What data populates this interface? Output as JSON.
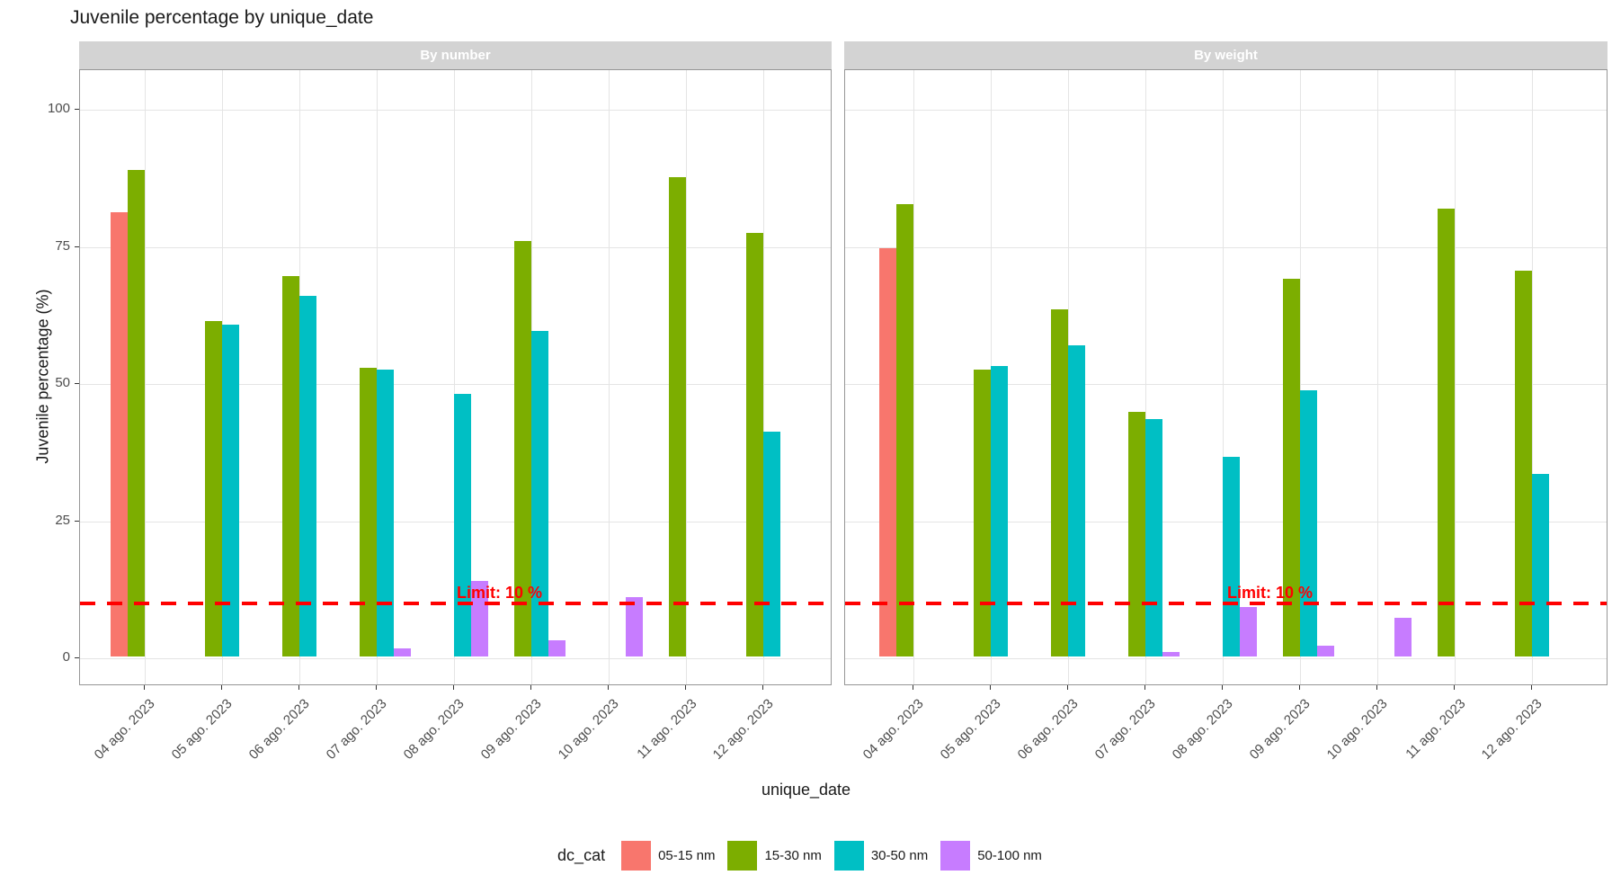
{
  "title": "Juvenile percentage by unique_date",
  "chart_data": {
    "type": "bar",
    "title": "Juvenile percentage by unique_date",
    "xlabel": "unique_date",
    "ylabel": "Juvenile percentage (%)",
    "ylim": [
      0,
      100
    ],
    "y_ticks": [
      0,
      25,
      50,
      75,
      100
    ],
    "grid": "major",
    "legend_position": "bottom",
    "legend_title": "dc_cat",
    "categories": [
      "04 ago. 2023",
      "05 ago. 2023",
      "06 ago. 2023",
      "07 ago. 2023",
      "08 ago. 2023",
      "09 ago. 2023",
      "10 ago. 2023",
      "11 ago. 2023",
      "12 ago. 2023"
    ],
    "series_colors": {
      "05-15 nm": "#F8766D",
      "15-30 nm": "#7CAE00",
      "30-50 nm": "#00BFC4",
      "50-100 nm": "#C77CFF"
    },
    "hline": {
      "value": 10,
      "label": "Limit: 10 %",
      "color": "#FF0000",
      "style": "dashed"
    },
    "facets": [
      {
        "name": "By number",
        "series": [
          {
            "name": "05-15 nm",
            "color": "#F8766D",
            "values": [
              81,
              null,
              null,
              null,
              null,
              null,
              null,
              null,
              null
            ]
          },
          {
            "name": "15-30 nm",
            "color": "#7CAE00",
            "values": [
              88.7,
              61.2,
              69.3,
              52.6,
              null,
              75.7,
              null,
              87.4,
              77.2
            ]
          },
          {
            "name": "30-50 nm",
            "color": "#00BFC4",
            "values": [
              null,
              60.5,
              65.8,
              52.3,
              47.9,
              59.3,
              null,
              null,
              41
            ]
          },
          {
            "name": "50-100 nm",
            "color": "#C77CFF",
            "values": [
              null,
              null,
              null,
              1.4,
              13.7,
              2.9,
              10.8,
              null,
              null
            ]
          }
        ]
      },
      {
        "name": "By weight",
        "series": [
          {
            "name": "05-15 nm",
            "color": "#F8766D",
            "values": [
              74.5,
              null,
              null,
              null,
              null,
              null,
              null,
              null,
              null
            ]
          },
          {
            "name": "15-30 nm",
            "color": "#7CAE00",
            "values": [
              82.5,
              52.3,
              63.2,
              44.6,
              null,
              68.8,
              null,
              81.6,
              70.3
            ]
          },
          {
            "name": "30-50 nm",
            "color": "#00BFC4",
            "values": [
              null,
              53,
              56.7,
              43.3,
              36.4,
              48.5,
              null,
              null,
              33.3
            ]
          },
          {
            "name": "50-100 nm",
            "color": "#C77CFF",
            "values": [
              null,
              null,
              null,
              0.8,
              9,
              2,
              7.1,
              null,
              null
            ]
          }
        ]
      }
    ]
  },
  "legend": {
    "title": "dc_cat",
    "entries": [
      {
        "label": "05-15 nm",
        "color": "#F8766D"
      },
      {
        "label": "15-30 nm",
        "color": "#7CAE00"
      },
      {
        "label": "30-50 nm",
        "color": "#00BFC4"
      },
      {
        "label": "50-100 nm",
        "color": "#C77CFF"
      }
    ]
  }
}
